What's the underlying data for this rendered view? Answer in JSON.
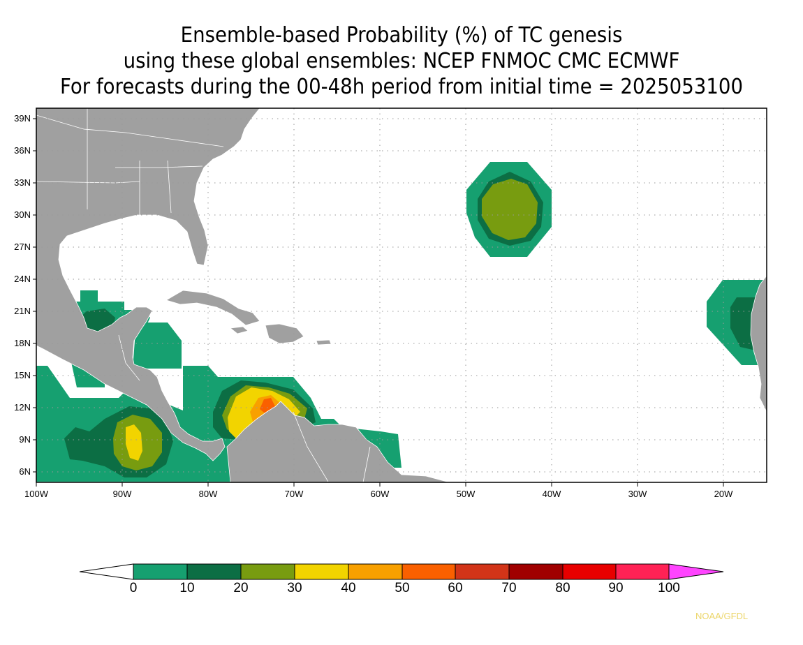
{
  "title": {
    "line1": "Ensemble-based Probability (%) of TC genesis",
    "line2": "using these global ensembles:   NCEP FNMOC CMC ECMWF",
    "line3": "For forecasts during the 00-48h period from initial time = 2025053100"
  },
  "map": {
    "lon_range": [
      -100,
      -15
    ],
    "lat_range": [
      5,
      40
    ],
    "lat_labels": [
      "39N",
      "36N",
      "33N",
      "30N",
      "27N",
      "24N",
      "21N",
      "18N",
      "15N",
      "12N",
      "9N",
      "6N"
    ],
    "lon_labels": [
      "100W",
      "90W",
      "80W",
      "70W",
      "60W",
      "50W",
      "40W",
      "30W",
      "20W"
    ],
    "grid": true,
    "land_color": "#a0a0a0",
    "ocean_color": "#ffffff"
  },
  "colorbar": {
    "labels": [
      "0",
      "10",
      "20",
      "30",
      "40",
      "50",
      "60",
      "70",
      "80",
      "90",
      "100"
    ],
    "colors": [
      "#ffffff",
      "#16a070",
      "#0c6e44",
      "#789c10",
      "#f2d400",
      "#f8a000",
      "#fa6000",
      "#d23418",
      "#a00000",
      "#e80000",
      "#ff2255",
      "#ff44ff"
    ]
  },
  "probability_regions": [
    {
      "area": "Bay of Campeche",
      "max_bin": "10-20"
    },
    {
      "area": "Eastern Pacific near 9N 88W",
      "max_bin": "30-40"
    },
    {
      "area": "Southwest Caribbean near 12N 73W",
      "max_bin": "50-60"
    },
    {
      "area": "Central Atlantic near 30N 45W",
      "max_bin": "20-30"
    },
    {
      "area": "West Africa coast near 20N 18W",
      "max_bin": "10-20"
    }
  ],
  "credit": "NOAA/GFDL"
}
